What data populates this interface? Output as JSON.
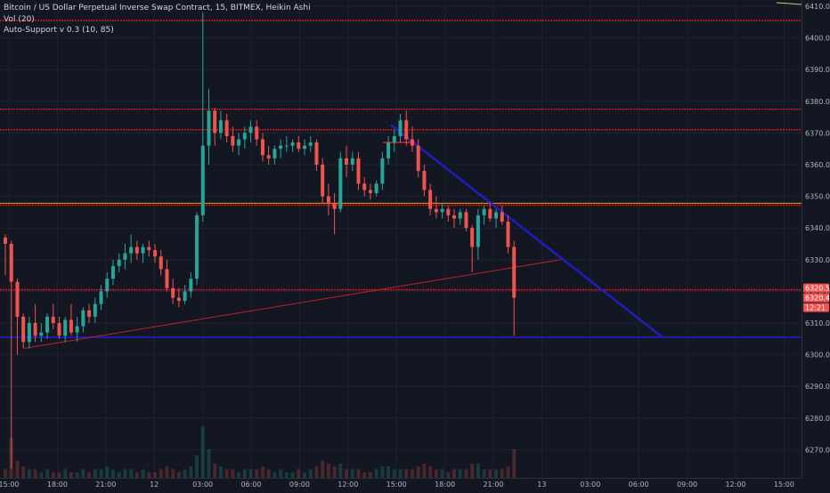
{
  "legend": {
    "title": "Bitcoin / US Dollar Perpetual Inverse Swap Contract, 15, BITMEX, Heikin Ashi",
    "volume": "Vol (20)",
    "indicator": "Auto-Support v 0.3 (10, 85)"
  },
  "colors": {
    "background": "#131722",
    "bull": "#26a69a",
    "bear": "#ef5350",
    "support_line": "#e8141a",
    "zone_line": "#ff9800",
    "trend_line": "#1e1ec8",
    "grid": "#1e2230"
  },
  "price_axis": {
    "ticks": [
      "6410.0",
      "6400.0",
      "6390.0",
      "6380.0",
      "6370.0",
      "6360.0",
      "6350.0",
      "6340.0",
      "6330.0",
      "6320.0",
      "6310.0",
      "6300.0",
      "6290.0",
      "6280.0",
      "6270.0"
    ]
  },
  "price_tags": [
    {
      "text": "6320.5",
      "color": "#ef5350"
    },
    {
      "text": "6320.4",
      "color": "#ef5350"
    },
    {
      "text": "12:21",
      "color": "#ef5350"
    }
  ],
  "time_axis": {
    "labels": [
      "15:00",
      "18:00",
      "21:00",
      "12",
      "03:00",
      "06:00",
      "09:00",
      "12:00",
      "15:00",
      "18:00",
      "21:00",
      "13",
      "03:00",
      "06:00",
      "09:00",
      "12:00",
      "15:00"
    ]
  },
  "chart_data": {
    "type": "candlestick",
    "ylim": [
      6264,
      6412
    ],
    "horizontal_levels": [
      {
        "price": 6405.5,
        "kind": "support"
      },
      {
        "price": 6377.5,
        "kind": "support"
      },
      {
        "price": 6371,
        "kind": "support"
      },
      {
        "price": 6347.8,
        "kind": "zone"
      },
      {
        "price": 6347.2,
        "kind": "support"
      },
      {
        "price": 6320.5,
        "kind": "support"
      },
      {
        "price": 6305.5,
        "kind": "trend"
      }
    ],
    "candles": [
      {
        "o": 6337,
        "h": 6338,
        "l": 6325,
        "c": 6335
      },
      {
        "o": 6335,
        "h": 6336,
        "l": 6264,
        "c": 6323
      },
      {
        "o": 6323,
        "h": 6324,
        "l": 6300,
        "c": 6312
      },
      {
        "o": 6312,
        "h": 6313,
        "l": 6302,
        "c": 6304
      },
      {
        "o": 6304,
        "h": 6312,
        "l": 6302,
        "c": 6310
      },
      {
        "o": 6310,
        "h": 6316,
        "l": 6304,
        "c": 6306
      },
      {
        "o": 6306,
        "h": 6310,
        "l": 6304,
        "c": 6307
      },
      {
        "o": 6307,
        "h": 6313,
        "l": 6305,
        "c": 6312
      },
      {
        "o": 6312,
        "h": 6316,
        "l": 6308,
        "c": 6310
      },
      {
        "o": 6310,
        "h": 6312,
        "l": 6305,
        "c": 6306
      },
      {
        "o": 6306,
        "h": 6312,
        "l": 6304,
        "c": 6311
      },
      {
        "o": 6311,
        "h": 6316,
        "l": 6306,
        "c": 6307
      },
      {
        "o": 6307,
        "h": 6312,
        "l": 6304,
        "c": 6309
      },
      {
        "o": 6309,
        "h": 6315,
        "l": 6307,
        "c": 6314
      },
      {
        "o": 6314,
        "h": 6316,
        "l": 6310,
        "c": 6312
      },
      {
        "o": 6312,
        "h": 6318,
        "l": 6310,
        "c": 6316
      },
      {
        "o": 6316,
        "h": 6322,
        "l": 6314,
        "c": 6320
      },
      {
        "o": 6320,
        "h": 6326,
        "l": 6318,
        "c": 6324
      },
      {
        "o": 6324,
        "h": 6330,
        "l": 6322,
        "c": 6328
      },
      {
        "o": 6328,
        "h": 6332,
        "l": 6326,
        "c": 6330
      },
      {
        "o": 6330,
        "h": 6335,
        "l": 6327,
        "c": 6332
      },
      {
        "o": 6332,
        "h": 6338,
        "l": 6329,
        "c": 6334
      },
      {
        "o": 6334,
        "h": 6336,
        "l": 6330,
        "c": 6332
      },
      {
        "o": 6332,
        "h": 6335,
        "l": 6329,
        "c": 6334
      },
      {
        "o": 6334,
        "h": 6336,
        "l": 6331,
        "c": 6333
      },
      {
        "o": 6333,
        "h": 6335,
        "l": 6329,
        "c": 6331
      },
      {
        "o": 6331,
        "h": 6333,
        "l": 6325,
        "c": 6327
      },
      {
        "o": 6327,
        "h": 6330,
        "l": 6320,
        "c": 6321
      },
      {
        "o": 6321,
        "h": 6324,
        "l": 6316,
        "c": 6318
      },
      {
        "o": 6318,
        "h": 6321,
        "l": 6315,
        "c": 6317
      },
      {
        "o": 6317,
        "h": 6322,
        "l": 6316,
        "c": 6320
      },
      {
        "o": 6320,
        "h": 6326,
        "l": 6318,
        "c": 6324
      },
      {
        "o": 6324,
        "h": 6345,
        "l": 6322,
        "c": 6344
      },
      {
        "o": 6344,
        "h": 6408,
        "l": 6342,
        "c": 6366
      },
      {
        "o": 6366,
        "h": 6384,
        "l": 6360,
        "c": 6377
      },
      {
        "o": 6377,
        "h": 6378,
        "l": 6366,
        "c": 6370
      },
      {
        "o": 6370,
        "h": 6377,
        "l": 6368,
        "c": 6374
      },
      {
        "o": 6374,
        "h": 6376,
        "l": 6367,
        "c": 6369
      },
      {
        "o": 6369,
        "h": 6372,
        "l": 6364,
        "c": 6366
      },
      {
        "o": 6366,
        "h": 6370,
        "l": 6363,
        "c": 6368
      },
      {
        "o": 6368,
        "h": 6372,
        "l": 6365,
        "c": 6370
      },
      {
        "o": 6370,
        "h": 6374,
        "l": 6367,
        "c": 6372
      },
      {
        "o": 6372,
        "h": 6374,
        "l": 6366,
        "c": 6368
      },
      {
        "o": 6368,
        "h": 6370,
        "l": 6361,
        "c": 6363
      },
      {
        "o": 6363,
        "h": 6366,
        "l": 6360,
        "c": 6362
      },
      {
        "o": 6362,
        "h": 6366,
        "l": 6360,
        "c": 6365
      },
      {
        "o": 6365,
        "h": 6368,
        "l": 6362,
        "c": 6366
      },
      {
        "o": 6366,
        "h": 6369,
        "l": 6364,
        "c": 6366
      },
      {
        "o": 6366,
        "h": 6368,
        "l": 6364,
        "c": 6367
      },
      {
        "o": 6367,
        "h": 6369,
        "l": 6364,
        "c": 6365
      },
      {
        "o": 6365,
        "h": 6368,
        "l": 6363,
        "c": 6366
      },
      {
        "o": 6366,
        "h": 6369,
        "l": 6364,
        "c": 6367
      },
      {
        "o": 6367,
        "h": 6368,
        "l": 6358,
        "c": 6360
      },
      {
        "o": 6360,
        "h": 6362,
        "l": 6348,
        "c": 6350
      },
      {
        "o": 6350,
        "h": 6354,
        "l": 6344,
        "c": 6348
      },
      {
        "o": 6348,
        "h": 6351,
        "l": 6338,
        "c": 6346
      },
      {
        "o": 6346,
        "h": 6364,
        "l": 6345,
        "c": 6362
      },
      {
        "o": 6362,
        "h": 6366,
        "l": 6356,
        "c": 6360
      },
      {
        "o": 6360,
        "h": 6364,
        "l": 6358,
        "c": 6362
      },
      {
        "o": 6362,
        "h": 6364,
        "l": 6352,
        "c": 6354
      },
      {
        "o": 6354,
        "h": 6356,
        "l": 6350,
        "c": 6352
      },
      {
        "o": 6352,
        "h": 6354,
        "l": 6349,
        "c": 6351
      },
      {
        "o": 6351,
        "h": 6355,
        "l": 6350,
        "c": 6354
      },
      {
        "o": 6354,
        "h": 6364,
        "l": 6352,
        "c": 6362
      },
      {
        "o": 6362,
        "h": 6369,
        "l": 6360,
        "c": 6367
      },
      {
        "o": 6367,
        "h": 6371,
        "l": 6364,
        "c": 6369
      },
      {
        "o": 6369,
        "h": 6376,
        "l": 6367,
        "c": 6374
      },
      {
        "o": 6374,
        "h": 6377,
        "l": 6366,
        "c": 6368
      },
      {
        "o": 6368,
        "h": 6372,
        "l": 6364,
        "c": 6366
      },
      {
        "o": 6366,
        "h": 6368,
        "l": 6356,
        "c": 6358
      },
      {
        "o": 6358,
        "h": 6360,
        "l": 6350,
        "c": 6352
      },
      {
        "o": 6352,
        "h": 6354,
        "l": 6344,
        "c": 6346
      },
      {
        "o": 6346,
        "h": 6350,
        "l": 6343,
        "c": 6345
      },
      {
        "o": 6345,
        "h": 6348,
        "l": 6343,
        "c": 6346
      },
      {
        "o": 6346,
        "h": 6347,
        "l": 6342,
        "c": 6344
      },
      {
        "o": 6344,
        "h": 6346,
        "l": 6340,
        "c": 6343
      },
      {
        "o": 6343,
        "h": 6346,
        "l": 6341,
        "c": 6345
      },
      {
        "o": 6345,
        "h": 6346,
        "l": 6339,
        "c": 6340
      },
      {
        "o": 6340,
        "h": 6341,
        "l": 6326,
        "c": 6334
      },
      {
        "o": 6334,
        "h": 6346,
        "l": 6330,
        "c": 6344
      },
      {
        "o": 6344,
        "h": 6347,
        "l": 6341,
        "c": 6346
      },
      {
        "o": 6346,
        "h": 6348,
        "l": 6342,
        "c": 6343
      },
      {
        "o": 6343,
        "h": 6346,
        "l": 6340,
        "c": 6345
      },
      {
        "o": 6345,
        "h": 6347,
        "l": 6341,
        "c": 6342
      },
      {
        "o": 6342,
        "h": 6344,
        "l": 6332,
        "c": 6334
      },
      {
        "o": 6334,
        "h": 6336,
        "l": 6306,
        "c": 6318
      }
    ],
    "volume_bars": [
      3,
      14,
      6,
      4,
      3,
      3,
      2,
      3,
      2,
      2,
      3,
      2,
      2,
      3,
      2,
      3,
      3,
      4,
      3,
      2,
      3,
      3,
      2,
      3,
      2,
      2,
      3,
      4,
      3,
      2,
      3,
      4,
      8,
      18,
      10,
      5,
      4,
      3,
      3,
      2,
      3,
      3,
      3,
      4,
      3,
      2,
      3,
      2,
      2,
      3,
      2,
      3,
      4,
      6,
      5,
      4,
      5,
      3,
      3,
      3,
      2,
      2,
      3,
      4,
      4,
      3,
      3,
      3,
      3,
      4,
      5,
      4,
      3,
      3,
      2,
      3,
      3,
      3,
      5,
      5,
      3,
      3,
      3,
      3,
      4,
      10
    ]
  }
}
